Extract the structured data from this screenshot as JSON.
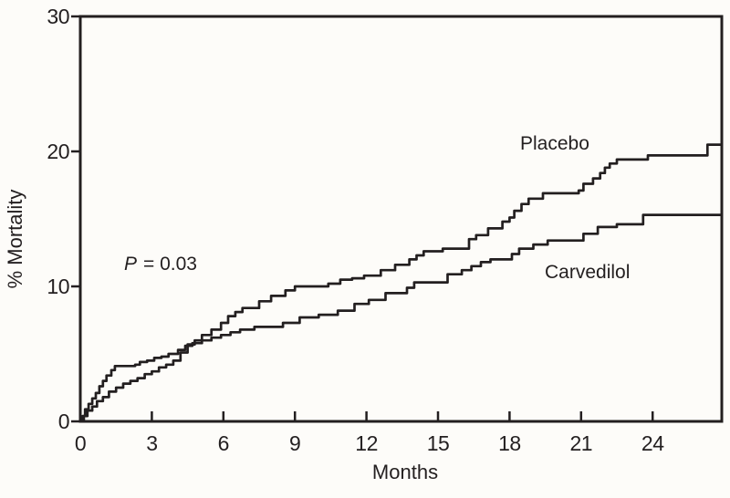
{
  "colors": {
    "background": "#fdfcf9",
    "ink": "#231f20"
  },
  "chart_data": {
    "type": "line",
    "subtype": "kaplan-meier-step",
    "title": "",
    "xlabel": "Months",
    "ylabel": "% Mortality",
    "xlim": [
      0,
      26.9
    ],
    "ylim": [
      0,
      30
    ],
    "x_ticks": [
      0,
      3,
      6,
      9,
      12,
      15,
      18,
      21,
      24
    ],
    "y_ticks": [
      0,
      10,
      20,
      30
    ],
    "grid": false,
    "legend_position": "inline-labels",
    "annotation_p": "P",
    "annotation_rest": "= 0.03",
    "annotation_full": "P = 0.03",
    "series": [
      {
        "name": "Placebo",
        "points": [
          [
            0,
            0
          ],
          [
            0.15,
            0.4
          ],
          [
            0.3,
            0.8
          ],
          [
            0.5,
            1.1
          ],
          [
            0.7,
            1.5
          ],
          [
            0.95,
            1.8
          ],
          [
            1.2,
            2.2
          ],
          [
            1.5,
            2.5
          ],
          [
            1.8,
            2.8
          ],
          [
            2.1,
            3.0
          ],
          [
            2.4,
            3.2
          ],
          [
            2.7,
            3.5
          ],
          [
            3.0,
            3.7
          ],
          [
            3.3,
            4.0
          ],
          [
            3.6,
            4.2
          ],
          [
            3.9,
            4.5
          ],
          [
            4.2,
            5.1
          ],
          [
            4.5,
            5.7
          ],
          [
            4.8,
            6.0
          ],
          [
            5.1,
            6.4
          ],
          [
            5.5,
            6.8
          ],
          [
            5.9,
            7.3
          ],
          [
            6.2,
            7.8
          ],
          [
            6.5,
            8.1
          ],
          [
            6.8,
            8.4
          ],
          [
            7.5,
            8.9
          ],
          [
            8.0,
            9.3
          ],
          [
            8.6,
            9.7
          ],
          [
            9.0,
            10.0
          ],
          [
            10.4,
            10.2
          ],
          [
            10.9,
            10.5
          ],
          [
            11.4,
            10.6
          ],
          [
            11.9,
            10.8
          ],
          [
            12.6,
            11.2
          ],
          [
            13.2,
            11.6
          ],
          [
            13.8,
            12.0
          ],
          [
            14.1,
            12.3
          ],
          [
            14.4,
            12.6
          ],
          [
            15.2,
            12.8
          ],
          [
            16.3,
            13.5
          ],
          [
            16.6,
            13.8
          ],
          [
            17.1,
            14.3
          ],
          [
            17.7,
            14.8
          ],
          [
            18.0,
            15.1
          ],
          [
            18.2,
            15.6
          ],
          [
            18.5,
            16.1
          ],
          [
            18.8,
            16.5
          ],
          [
            19.4,
            16.9
          ],
          [
            20.9,
            17.1
          ],
          [
            21.1,
            17.6
          ],
          [
            21.5,
            18.0
          ],
          [
            21.8,
            18.4
          ],
          [
            22.0,
            18.8
          ],
          [
            22.2,
            19.1
          ],
          [
            22.5,
            19.4
          ],
          [
            23.8,
            19.7
          ],
          [
            26.3,
            20.5
          ]
        ]
      },
      {
        "name": "Carvedilol",
        "points": [
          [
            0,
            0
          ],
          [
            0.1,
            0.4
          ],
          [
            0.2,
            0.9
          ],
          [
            0.35,
            1.3
          ],
          [
            0.5,
            1.7
          ],
          [
            0.65,
            2.1
          ],
          [
            0.8,
            2.6
          ],
          [
            0.95,
            3.0
          ],
          [
            1.1,
            3.4
          ],
          [
            1.3,
            3.8
          ],
          [
            1.45,
            4.1
          ],
          [
            2.3,
            4.2
          ],
          [
            2.5,
            4.4
          ],
          [
            2.8,
            4.5
          ],
          [
            3.1,
            4.7
          ],
          [
            3.4,
            4.8
          ],
          [
            3.7,
            5.0
          ],
          [
            4.1,
            5.3
          ],
          [
            4.4,
            5.6
          ],
          [
            4.7,
            5.8
          ],
          [
            5.1,
            6.0
          ],
          [
            5.5,
            6.2
          ],
          [
            5.9,
            6.4
          ],
          [
            6.3,
            6.6
          ],
          [
            6.7,
            6.8
          ],
          [
            7.3,
            7.0
          ],
          [
            8.5,
            7.3
          ],
          [
            9.2,
            7.7
          ],
          [
            10.0,
            7.9
          ],
          [
            10.8,
            8.2
          ],
          [
            11.5,
            8.7
          ],
          [
            12.1,
            9.0
          ],
          [
            12.8,
            9.5
          ],
          [
            13.7,
            9.9
          ],
          [
            14.0,
            10.3
          ],
          [
            15.4,
            10.9
          ],
          [
            16.0,
            11.2
          ],
          [
            16.4,
            11.5
          ],
          [
            16.8,
            11.8
          ],
          [
            17.2,
            12.0
          ],
          [
            18.1,
            12.4
          ],
          [
            18.4,
            12.8
          ],
          [
            19.0,
            13.1
          ],
          [
            19.6,
            13.4
          ],
          [
            21.1,
            13.9
          ],
          [
            21.7,
            14.4
          ],
          [
            22.5,
            14.6
          ],
          [
            23.6,
            15.3
          ]
        ]
      }
    ]
  }
}
